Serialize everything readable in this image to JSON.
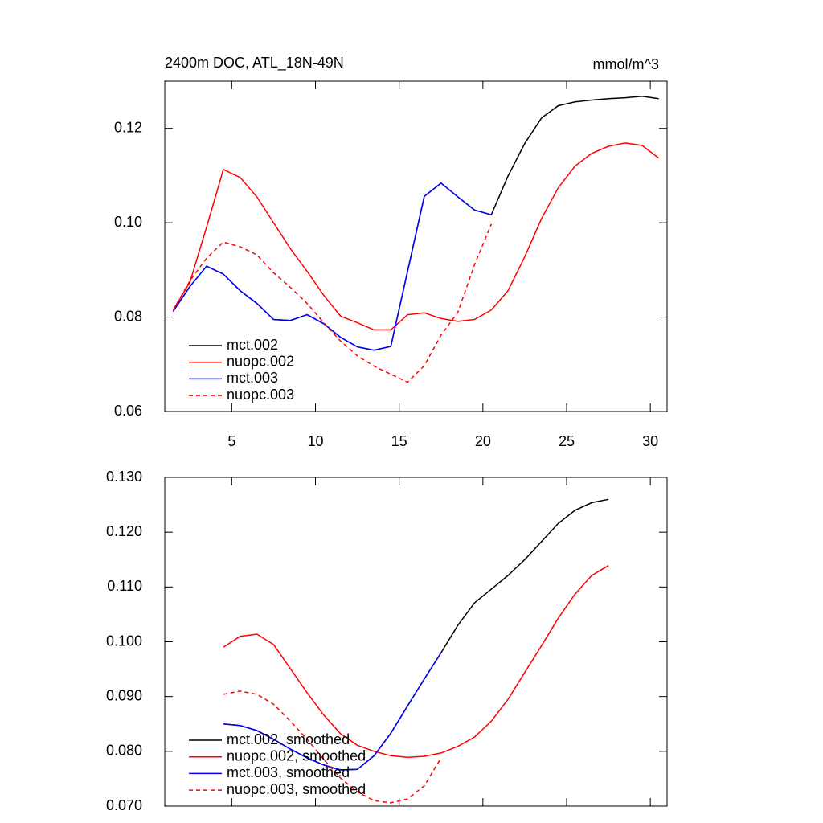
{
  "chart_data": [
    {
      "type": "line",
      "title": "2400m DOC, ATL_18N-49N",
      "subtitle": "mmol/m^3",
      "x": [
        1.5,
        2.5,
        3.5,
        4.5,
        5.5,
        6.5,
        7.5,
        8.5,
        9.5,
        10.5,
        11.5,
        12.5,
        13.5,
        14.5,
        15.5,
        16.5,
        17.5,
        18.5,
        19.5,
        20.5,
        21.5,
        22.5,
        23.5,
        24.5,
        25.5,
        26.5,
        27.5,
        28.5,
        29.5,
        30.5
      ],
      "series": [
        {
          "name": "mct.002",
          "color": "#000000",
          "linestyle": "solid",
          "values": [
            0.0812,
            0.0865,
            0.0908,
            0.0891,
            0.0856,
            0.0829,
            0.0795,
            0.0793,
            0.0805,
            0.0786,
            0.0757,
            0.0737,
            0.073,
            0.0738,
            0.0897,
            0.1056,
            0.1084,
            0.1055,
            0.1027,
            0.1017,
            0.1099,
            0.1168,
            0.1222,
            0.1248,
            0.1256,
            0.126,
            0.1263,
            0.1265,
            0.1268,
            0.1263
          ]
        },
        {
          "name": "nuopc.002",
          "color": "#ff0000",
          "linestyle": "solid",
          "values": [
            0.0815,
            0.0874,
            0.0991,
            0.1113,
            0.1096,
            0.1055,
            0.1,
            0.0945,
            0.0897,
            0.0846,
            0.0802,
            0.0788,
            0.0773,
            0.0773,
            0.0805,
            0.0809,
            0.0797,
            0.0791,
            0.0795,
            0.0815,
            0.0856,
            0.0928,
            0.1009,
            0.1074,
            0.112,
            0.1147,
            0.1162,
            0.1169,
            0.1164,
            0.1137
          ]
        },
        {
          "name": "mct.003",
          "color": "#0000ff",
          "linestyle": "solid",
          "values": [
            0.0812,
            0.0865,
            0.0908,
            0.0891,
            0.0856,
            0.0829,
            0.0795,
            0.0793,
            0.0805,
            0.0786,
            0.0757,
            0.0737,
            0.073,
            0.0738,
            0.0897,
            0.1056,
            0.1084,
            0.1055,
            0.1027,
            0.1017,
            null,
            null,
            null,
            null,
            null,
            null,
            null,
            null,
            null,
            null
          ]
        },
        {
          "name": "nuopc.003",
          "color": "#ff0000",
          "linestyle": "dashed",
          "values": [
            0.0815,
            0.0877,
            0.0925,
            0.0959,
            0.0949,
            0.0932,
            0.0894,
            0.0863,
            0.0829,
            0.0788,
            0.0749,
            0.0718,
            0.0696,
            0.0679,
            0.0662,
            0.0697,
            0.0762,
            0.081,
            0.0911,
            0.0997,
            null,
            null,
            null,
            null,
            null,
            null,
            null,
            null,
            null,
            null
          ]
        }
      ],
      "xlim": [
        1,
        31
      ],
      "xticks": [
        5,
        10,
        15,
        20,
        25,
        30
      ],
      "ylim": [
        0.06,
        0.13
      ],
      "yticks": [
        0.06,
        0.08,
        {
          "value": 0.1,
          "label": "0.10"
        },
        0.12
      ],
      "legend": "lower left"
    },
    {
      "type": "line",
      "x": [
        4.5,
        5.5,
        6.5,
        7.5,
        8.5,
        9.5,
        10.5,
        11.5,
        12.5,
        13.5,
        14.5,
        15.5,
        16.5,
        17.5,
        18.5,
        19.5,
        20.5,
        21.5,
        22.5,
        23.5,
        24.5,
        25.5,
        26.5,
        27.5
      ],
      "series": [
        {
          "name": "mct.002, smoothed",
          "color": "#000000",
          "linestyle": "solid",
          "values": [
            0.085,
            0.0847,
            0.0838,
            0.0822,
            0.0804,
            0.0788,
            0.0775,
            0.0766,
            0.0767,
            0.0792,
            0.0833,
            0.0883,
            0.0932,
            0.098,
            0.103,
            0.1071,
            0.1096,
            0.1121,
            0.115,
            0.1183,
            0.1216,
            0.124,
            0.1254,
            0.126
          ]
        },
        {
          "name": "nuopc.002, smoothed",
          "color": "#ff0000",
          "linestyle": "solid",
          "values": [
            0.099,
            0.101,
            0.1014,
            0.0995,
            0.0951,
            0.0907,
            0.0866,
            0.0832,
            0.0811,
            0.08,
            0.0792,
            0.0789,
            0.0791,
            0.0797,
            0.0809,
            0.0826,
            0.0855,
            0.0895,
            0.0944,
            0.0993,
            0.1043,
            0.1087,
            0.1121,
            0.1139
          ]
        },
        {
          "name": "mct.003, smoothed",
          "color": "#0000ff",
          "linestyle": "solid",
          "values": [
            0.085,
            0.0847,
            0.0838,
            0.0822,
            0.0804,
            0.0788,
            0.0775,
            0.0766,
            0.0767,
            0.0792,
            0.0833,
            0.0883,
            0.0932,
            0.098,
            null,
            null,
            null,
            null,
            null,
            null,
            null,
            null,
            null,
            null
          ]
        },
        {
          "name": "nuopc.003, smoothed",
          "color": "#ff0000",
          "linestyle": "dashed",
          "values": [
            0.0904,
            0.091,
            0.0904,
            0.0886,
            0.0855,
            0.0822,
            0.0785,
            0.0751,
            0.0726,
            0.071,
            0.0706,
            0.0713,
            0.0737,
            0.0788,
            null,
            null,
            null,
            null,
            null,
            null,
            null,
            null,
            null,
            null
          ]
        }
      ],
      "xlim": [
        1,
        31
      ],
      "xticks": [
        5,
        10,
        15,
        20,
        25,
        30
      ],
      "ylim": [
        0.07,
        0.13
      ],
      "yticks": [
        {
          "value": 0.07,
          "label": "0.070"
        },
        {
          "value": 0.08,
          "label": "0.080"
        },
        {
          "value": 0.09,
          "label": "0.090"
        },
        {
          "value": 0.1,
          "label": "0.100"
        },
        {
          "value": 0.11,
          "label": "0.110"
        },
        {
          "value": 0.12,
          "label": "0.120"
        },
        {
          "value": 0.13,
          "label": "0.130"
        }
      ],
      "legend": "lower left"
    }
  ]
}
